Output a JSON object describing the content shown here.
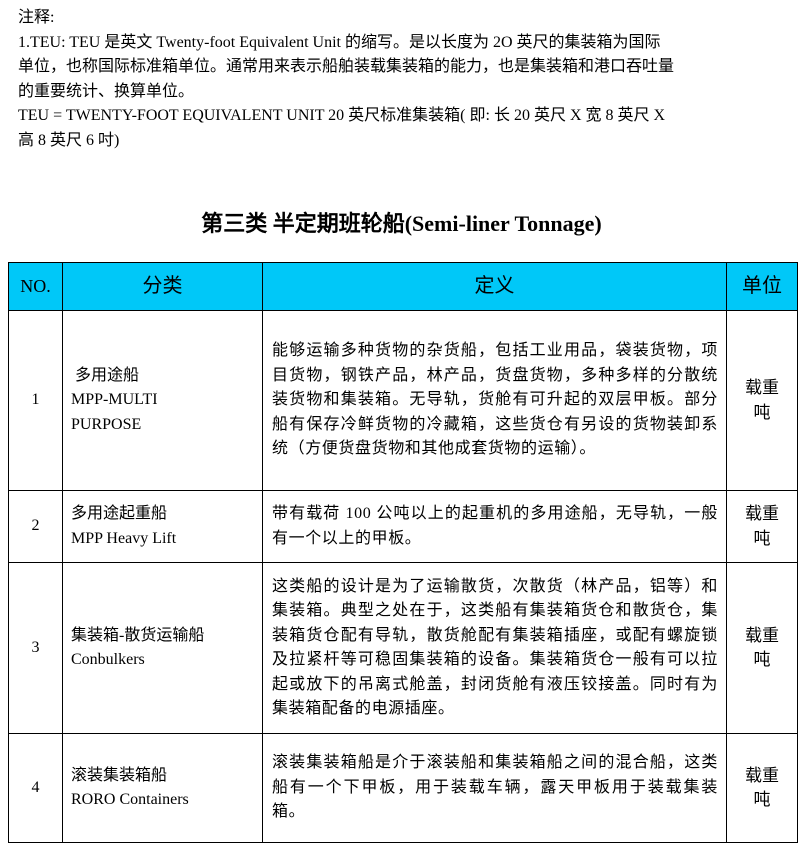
{
  "notes": {
    "lines": [
      "注释:",
      "1.TEU:  TEU 是英文 Twenty-foot Equivalent Unit 的缩写。是以长度为 2O 英尺的集装箱为国际",
      "单位，也称国际标准箱单位。通常用来表示船舶装载集装箱的能力，也是集装箱和港口吞吐量",
      "的重要统计、换算单位。",
      "TEU = TWENTY-FOOT EQUIVALENT UNIT 20 英尺标准集装箱( 即: 长 20 英尺  X  宽 8 英尺  X",
      "高 8 英尺 6 吋)"
    ]
  },
  "section_title": "第三类  半定期班轮船(Semi-liner Tonnage)",
  "table": {
    "header_color": "#00c8f8",
    "headers": [
      "NO.",
      "分类",
      "定义",
      "单位"
    ],
    "rows": [
      {
        "no": "1",
        "cat_cn": " 多用途船",
        "cat_en": "MPP-MULTI PURPOSE",
        "definition": "能够运输多种货物的杂货船，包括工业用品，袋装货物，项目货物，钢铁产品，林产品，货盘货物，多种多样的分散统装货物和集装箱。无导轨，货舱有可升起的双层甲板。部分船有保存冷鲜货物的冷藏箱，这些货仓有另设的货物装卸系统（方便货盘货物和其他成套货物的运输）。",
        "unit": "载重吨"
      },
      {
        "no": "2",
        "cat_cn": "多用途起重船",
        "cat_en": "MPP Heavy Lift",
        "definition": "带有载荷 100 公吨以上的起重机的多用途船，无导轨，一般有一个以上的甲板。",
        "unit": "载重吨"
      },
      {
        "no": "3",
        "cat_cn": "集装箱-散货运输船",
        "cat_en": "Conbulkers",
        "definition": "这类船的设计是为了运输散货，次散货（林产品，铝等）和集装箱。典型之处在于，这类船有集装箱货仓和散货仓，集装箱货仓配有导轨，散货舱配有集装箱插座，或配有螺旋锁及拉紧杆等可稳固集装箱的设备。集装箱货仓一般有可以拉起或放下的吊离式舱盖，封闭货舱有液压铰接盖。同时有为集装箱配备的电源插座。",
        "unit": "载重吨"
      },
      {
        "no": "4",
        "cat_cn": "滚装集装箱船",
        "cat_en": "RORO Containers",
        "definition": "滚装集装箱船是介于滚装船和集装箱船之间的混合船，这类船有一个下甲板，用于装载车辆，露天甲板用于装载集装箱。",
        "unit": "载重吨"
      }
    ]
  }
}
